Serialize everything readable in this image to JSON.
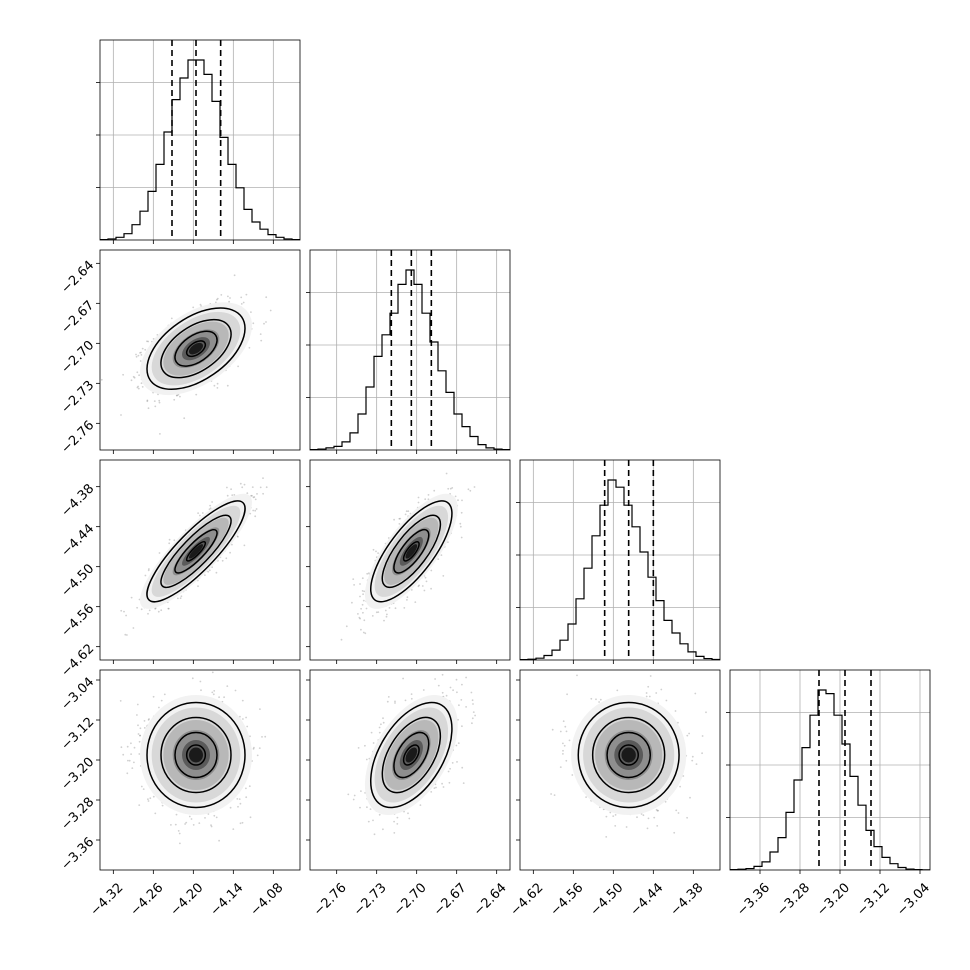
{
  "chart_data": {
    "type": "corner",
    "parameters": [
      {
        "range": [
          -4.34,
          -4.04
        ],
        "ticks": [
          "-4.32",
          "-4.26",
          "-4.20",
          "-4.14",
          "-4.08"
        ],
        "hist": [
          2,
          6,
          15,
          35,
          85,
          160,
          270,
          420,
          600,
          780,
          900,
          1000,
          1000,
          920,
          770,
          570,
          420,
          290,
          170,
          100,
          60,
          30,
          15,
          6,
          2
        ],
        "quantiles": [
          -4.232,
          -4.196,
          -4.159
        ]
      },
      {
        "range": [
          -2.78,
          -2.63
        ],
        "ticks": [
          "-2.76",
          "-2.73",
          "-2.70",
          "-2.67",
          "-2.64"
        ],
        "hist": [
          2,
          5,
          12,
          20,
          45,
          95,
          200,
          350,
          520,
          640,
          760,
          920,
          1000,
          920,
          760,
          600,
          440,
          320,
          200,
          130,
          75,
          30,
          12,
          5,
          2
        ],
        "quantiles": [
          -2.719,
          -2.704,
          -2.689
        ]
      },
      {
        "range": [
          -4.64,
          -4.34
        ],
        "ticks": [
          "-4.62",
          "-4.56",
          "-4.50",
          "-4.44",
          "-4.38"
        ],
        "hist": [
          2,
          4,
          10,
          25,
          55,
          110,
          200,
          340,
          510,
          690,
          860,
          1000,
          960,
          860,
          740,
          600,
          460,
          330,
          220,
          150,
          90,
          45,
          20,
          8,
          3
        ],
        "quantiles": [
          -4.513,
          -4.477,
          -4.44
        ]
      },
      {
        "range": [
          -3.42,
          -3.02
        ],
        "ticks": [
          "-3.36",
          "-3.28",
          "-3.20",
          "-3.12",
          "-3.04"
        ],
        "hist": [
          2,
          4,
          8,
          20,
          45,
          100,
          180,
          320,
          500,
          680,
          860,
          1000,
          980,
          860,
          700,
          520,
          360,
          220,
          130,
          70,
          35,
          14,
          5,
          2,
          1
        ],
        "quantiles": [
          -3.242,
          -3.19,
          -3.138
        ]
      }
    ],
    "pairs": [
      {
        "row": 1,
        "col": 0,
        "mean": [
          -4.196,
          -2.704
        ],
        "sd": [
          0.035,
          0.0145
        ],
        "rho": 0.5
      },
      {
        "row": 2,
        "col": 0,
        "mean": [
          -4.196,
          -4.477
        ],
        "sd": [
          0.035,
          0.036
        ],
        "rho": 0.85
      },
      {
        "row": 2,
        "col": 1,
        "mean": [
          -2.704,
          -4.477
        ],
        "sd": [
          0.0145,
          0.036
        ],
        "rho": 0.75
      },
      {
        "row": 3,
        "col": 0,
        "mean": [
          -4.196,
          -3.19
        ],
        "sd": [
          0.035,
          0.05
        ],
        "rho": 0.0
      },
      {
        "row": 3,
        "col": 1,
        "mean": [
          -2.704,
          -3.19
        ],
        "sd": [
          0.0145,
          0.05
        ],
        "rho": 0.5
      },
      {
        "row": 3,
        "col": 2,
        "mean": [
          -4.477,
          -3.19
        ],
        "sd": [
          0.036,
          0.05
        ],
        "rho": 0.0
      }
    ],
    "grid": true
  }
}
